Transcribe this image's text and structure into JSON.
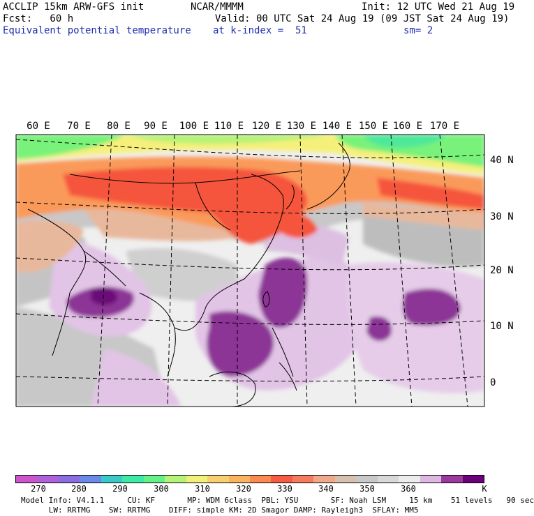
{
  "header": {
    "model": "ACCLIP 15km ARW-GFS init",
    "org": "NCAR/MMMM",
    "init": "Init: 12 UTC Wed 21 Aug 19",
    "forecast": "Fcst:   60 h",
    "valid": "Valid: 00 UTC Sat 24 Aug 19 (09 JST Sat 24 Aug 19)",
    "field": "Equivalent potential temperature",
    "level": "at k-index =  51",
    "smoothing": "sm= 2"
  },
  "map": {
    "lon_labels": [
      "60 E",
      "70 E",
      "80 E",
      "90 E",
      "100 E",
      "110 E",
      "120 E",
      "130 E",
      "140 E",
      "150 E",
      "160 E",
      "170 E"
    ],
    "lat_labels": [
      "40 N",
      "30 N",
      "20 N",
      "10 N",
      "0"
    ],
    "colors": {
      "border": "#000000",
      "gridline": "#000000",
      "ocean_low": "#efefef",
      "tropics_purple": "#e2c4e6",
      "deep_purple": "#8c3696",
      "darkest_purple": "#6b0e78",
      "gray": "#c8c8c8",
      "dark_gray": "#9a9a9a",
      "tan": "#e8b89c",
      "orange": "#fa9a5a",
      "red": "#f5543c",
      "yellow": "#f5f07a",
      "green": "#78f27a",
      "cyan_green": "#4ee89a"
    }
  },
  "colorbar": {
    "colors": [
      "#cc55cc",
      "#b060d8",
      "#8a6ee0",
      "#6a8ae8",
      "#3ac8c8",
      "#3ee8a6",
      "#66f08a",
      "#b6f278",
      "#f0f07a",
      "#f6d070",
      "#f8b262",
      "#f88a52",
      "#f65c44",
      "#f47a60",
      "#f0a88a",
      "#d8c0b0",
      "#c8c8c8",
      "#d8d8d8",
      "#ececec",
      "#dcb8e0",
      "#9a3a9e",
      "#6a007a"
    ],
    "labels": [
      "270",
      "280",
      "290",
      "300",
      "310",
      "320",
      "330",
      "340",
      "350",
      "360",
      "K"
    ],
    "unit": "K"
  },
  "footer": {
    "line1": "Model Info: V4.1.1     CU: KF       MP: WDM 6class  PBL: YSU       SF: Noah LSM     15 km    51 levels   90 sec",
    "line2": "      LW: RRTMG    SW: RRTMG    DIFF: simple KM: 2D Smagor DAMP: Rayleigh3  SFLAY: MM5"
  }
}
